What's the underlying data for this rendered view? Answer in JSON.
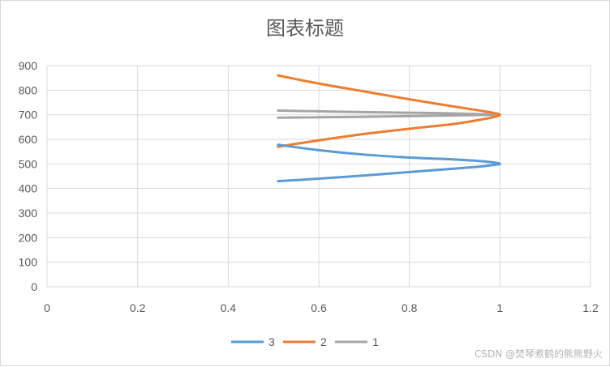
{
  "chart_data": {
    "type": "scatter",
    "style": "smooth-lines",
    "title": "图表标题",
    "xlabel": "",
    "ylabel": "",
    "xlim": [
      0,
      1.2
    ],
    "ylim": [
      0,
      900
    ],
    "x_ticks": [
      "0",
      "0.2",
      "0.4",
      "0.6",
      "0.8",
      "1",
      "1.2"
    ],
    "y_ticks": [
      "0",
      "100",
      "200",
      "300",
      "400",
      "500",
      "600",
      "700",
      "800",
      "900"
    ],
    "grid": true,
    "legend_position": "bottom",
    "series": [
      {
        "name": "3",
        "color": "#5b9bd5",
        "points": [
          [
            0.51,
            430
          ],
          [
            0.6,
            440
          ],
          [
            0.7,
            453
          ],
          [
            0.8,
            467
          ],
          [
            0.9,
            481
          ],
          [
            0.96,
            490
          ],
          [
            0.99,
            497
          ],
          [
            1.0,
            500
          ],
          [
            0.99,
            505
          ],
          [
            0.96,
            511
          ],
          [
            0.9,
            518
          ],
          [
            0.8,
            526
          ],
          [
            0.7,
            538
          ],
          [
            0.6,
            556
          ],
          [
            0.51,
            578
          ]
        ]
      },
      {
        "name": "2",
        "color": "#ed7d31",
        "points": [
          [
            0.51,
            570
          ],
          [
            0.6,
            596
          ],
          [
            0.7,
            622
          ],
          [
            0.8,
            643
          ],
          [
            0.9,
            663
          ],
          [
            0.96,
            681
          ],
          [
            0.99,
            692
          ],
          [
            1.0,
            700
          ],
          [
            0.99,
            706
          ],
          [
            0.96,
            716
          ],
          [
            0.9,
            733
          ],
          [
            0.8,
            763
          ],
          [
            0.7,
            795
          ],
          [
            0.6,
            827
          ],
          [
            0.51,
            860
          ]
        ]
      },
      {
        "name": "1",
        "color": "#a5a5a5",
        "points": [
          [
            0.51,
            688
          ],
          [
            0.7,
            692
          ],
          [
            0.85,
            696
          ],
          [
            0.95,
            699
          ],
          [
            1.0,
            700
          ],
          [
            0.95,
            703
          ],
          [
            0.85,
            707
          ],
          [
            0.7,
            711
          ],
          [
            0.51,
            717
          ]
        ]
      }
    ]
  },
  "watermark": "CSDN @焚琴煮鹤的熊熊野火"
}
